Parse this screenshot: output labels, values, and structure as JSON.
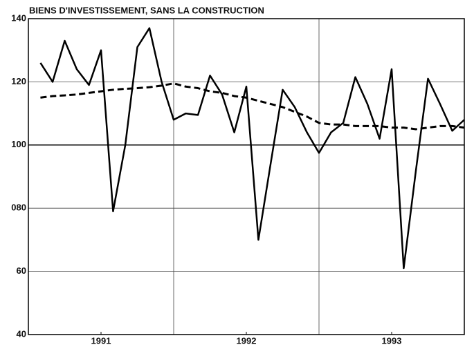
{
  "chart_data": {
    "type": "line",
    "title": "BIENS D'INVESTISSEMENT, SANS LA CONSTRUCTION",
    "x": [
      1991.083,
      1991.167,
      1991.25,
      1991.333,
      1991.417,
      1991.5,
      1991.583,
      1991.667,
      1991.75,
      1991.833,
      1991.917,
      1992.0,
      1992.083,
      1992.167,
      1992.25,
      1992.333,
      1992.417,
      1992.5,
      1992.583,
      1992.667,
      1992.75,
      1992.833,
      1992.917,
      1993.0,
      1993.083,
      1993.167,
      1993.25,
      1993.333,
      1993.417,
      1993.5,
      1993.583,
      1993.667,
      1993.75,
      1993.833,
      1993.917,
      1994.0
    ],
    "series": [
      {
        "color": "#000000",
        "dash": false,
        "values": [
          126,
          120,
          133,
          124,
          119,
          130,
          79,
          100,
          131,
          137,
          120,
          108,
          110,
          109.5,
          122,
          116,
          104,
          118.5,
          70,
          94,
          117.5,
          112,
          104,
          97.5,
          104,
          107,
          121.5,
          113,
          102,
          124,
          61,
          92,
          121,
          113,
          104.5,
          108
        ]
      },
      {
        "color": "#000000",
        "dash": true,
        "values": [
          115,
          115.5,
          115.7,
          116,
          116.5,
          117,
          117.5,
          117.8,
          118,
          118.3,
          118.8,
          119.5,
          118.5,
          118,
          117,
          116.5,
          115.5,
          115,
          114,
          113,
          112,
          110.5,
          109,
          107,
          106.5,
          106.5,
          106,
          106,
          106,
          105.5,
          105.5,
          105,
          105.5,
          106,
          106,
          105.5
        ]
      }
    ],
    "xlim": [
      1991,
      1994
    ],
    "xticks": [
      {
        "value": 1991.5,
        "label": "1991"
      },
      {
        "value": 1992.5,
        "label": "1992"
      },
      {
        "value": 1993.5,
        "label": "1993"
      }
    ],
    "xgrid": [
      1992,
      1993
    ],
    "ylim": [
      40,
      140
    ],
    "yticks": [
      40,
      60,
      {
        "value": 80,
        "label": "080"
      },
      100,
      120,
      140
    ],
    "grid": true
  }
}
